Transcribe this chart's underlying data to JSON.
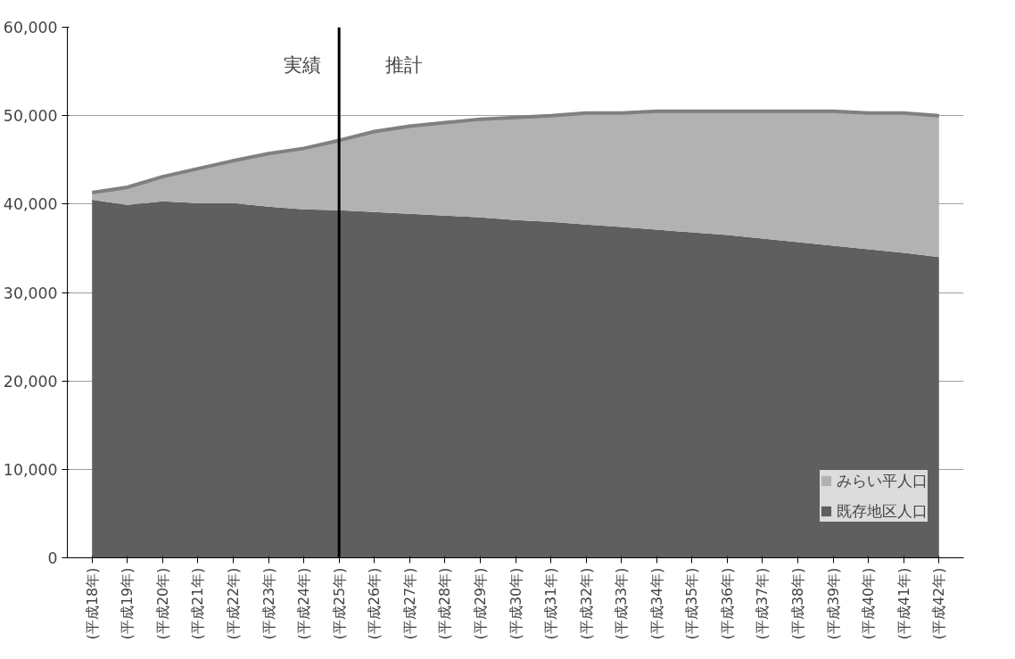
{
  "chart_data": {
    "type": "area",
    "stacked": true,
    "categories": [
      "(平成18年)",
      "(平成19年)",
      "(平成20年)",
      "(平成21年)",
      "(平成22年)",
      "(平成23年)",
      "(平成24年)",
      "(平成25年)",
      "(平成26年)",
      "(平成27年)",
      "(平成28年)",
      "(平成29年)",
      "(平成30年)",
      "(平成31年)",
      "(平成32年)",
      "(平成33年)",
      "(平成34年)",
      "(平成35年)",
      "(平成36年)",
      "(平成37年)",
      "(平成38年)",
      "(平成39年)",
      "(平成40年)",
      "(平成41年)",
      "(平成42年)"
    ],
    "series": [
      {
        "name": "既存地区人口",
        "color": "#5f5f5f",
        "values": [
          40500,
          39900,
          40300,
          40100,
          40100,
          39700,
          39400,
          39300,
          39100,
          38900,
          38700,
          38500,
          38200,
          38000,
          37700,
          37400,
          37100,
          36800,
          36500,
          36100,
          35700,
          35300,
          34900,
          34500,
          34000
        ]
      },
      {
        "name": "みらい平人口",
        "color": "#b2b2b2",
        "values": [
          800,
          2000,
          2800,
          3900,
          4800,
          6000,
          6900,
          7900,
          9100,
          9900,
          10500,
          11100,
          11600,
          12000,
          12600,
          12900,
          13400,
          13700,
          14000,
          14400,
          14800,
          15200,
          15400,
          15800,
          16000
        ]
      }
    ],
    "ylim": [
      0,
      60000
    ],
    "yticks": [
      {
        "value": 0,
        "label": "0"
      },
      {
        "value": 10000,
        "label": "10,000"
      },
      {
        "value": 20000,
        "label": "20,000"
      },
      {
        "value": 30000,
        "label": "30,000"
      },
      {
        "value": 40000,
        "label": "40,000"
      },
      {
        "value": 50000,
        "label": "50,000"
      },
      {
        "value": 60000,
        "label": "60,000"
      }
    ],
    "grid": "y",
    "legend": "bottom right",
    "ref_lines": [
      {
        "axis": "x",
        "value": "(平成25年)",
        "color": "#000000"
      }
    ],
    "annotations": [
      "実績",
      "推計"
    ]
  }
}
